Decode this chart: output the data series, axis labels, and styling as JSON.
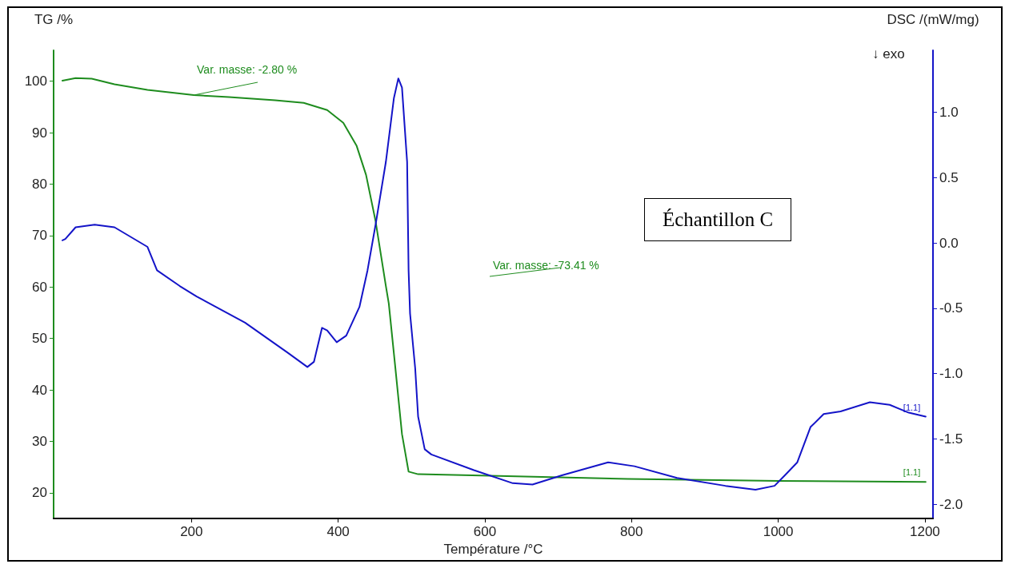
{
  "chart_data": {
    "type": "line",
    "xlabel": "Température /°C",
    "ylabel": "TG /%",
    "y2label": "DSC /(mW/mg)",
    "xlim": [
      12,
      1211
    ],
    "ylim": [
      15,
      106
    ],
    "y2lim": [
      -2.11,
      1.475
    ],
    "xticks": [
      200,
      400,
      600,
      800,
      1000,
      1200
    ],
    "yticks": [
      20,
      30,
      40,
      50,
      60,
      70,
      80,
      90,
      100
    ],
    "y2ticks": [
      {
        "value": -2,
        "label": "-2.0"
      },
      -1.5,
      {
        "value": -1,
        "label": "-1.0"
      },
      -0.5,
      {
        "value": 0,
        "label": "0.0"
      },
      0.5,
      {
        "value": 1,
        "label": "1.0"
      }
    ],
    "grid": false,
    "legend": false,
    "marker": "none",
    "line_style": "solid",
    "series": [
      {
        "name": "[1.1]",
        "color": "#1e8c1e",
        "x": [
          24,
          42,
          64,
          95,
          140,
          203,
          251,
          314,
          353,
          385,
          407,
          425,
          438,
          451,
          465,
          469,
          478,
          487,
          496,
          509,
          607,
          795,
          1000,
          1201
        ],
        "values": [
          100.1,
          100.6,
          100.5,
          99.4,
          98.3,
          97.3,
          96.9,
          96.3,
          95.8,
          94.4,
          91.9,
          87.5,
          81.8,
          72.8,
          60.2,
          56.8,
          44.2,
          31.4,
          24.1,
          23.6,
          23.3,
          22.7,
          22.3,
          22.1
        ]
      },
      {
        "name": "[1.1]",
        "color": "#1414c8",
        "axis": "y2",
        "x": [
          24,
          28,
          42,
          68,
          95,
          140,
          153,
          184,
          207,
          273,
          331,
          358,
          367,
          378,
          385,
          398,
          411,
          429,
          440,
          451,
          465,
          476,
          482,
          487,
          494,
          496,
          498,
          505,
          509,
          518,
          527,
          585,
          638,
          665,
          705,
          768,
          804,
          862,
          928,
          969,
          995,
          1009,
          1026,
          1044,
          1062,
          1085,
          1125,
          1152,
          1178,
          1201
        ],
        "values": [
          0.02,
          0.03,
          0.12,
          0.14,
          0.12,
          -0.03,
          -0.21,
          -0.33,
          -0.41,
          -0.61,
          -0.84,
          -0.95,
          -0.91,
          -0.65,
          -0.67,
          -0.76,
          -0.71,
          -0.49,
          -0.21,
          0.14,
          0.62,
          1.11,
          1.26,
          1.19,
          0.62,
          -0.21,
          -0.54,
          -0.96,
          -1.33,
          -1.58,
          -1.62,
          -1.74,
          -1.84,
          -1.85,
          -1.78,
          -1.68,
          -1.71,
          -1.8,
          -1.86,
          -1.89,
          -1.86,
          -1.78,
          -1.68,
          -1.41,
          -1.31,
          -1.29,
          -1.22,
          -1.24,
          -1.3,
          -1.33
        ]
      }
    ],
    "annotations": [
      "↓ exo",
      "Échantillon C",
      {
        "text": "Var. masse: -2.80 %",
        "x": 203,
        "y": 97.3
      },
      "Var. masse: -73.41 %"
    ]
  }
}
